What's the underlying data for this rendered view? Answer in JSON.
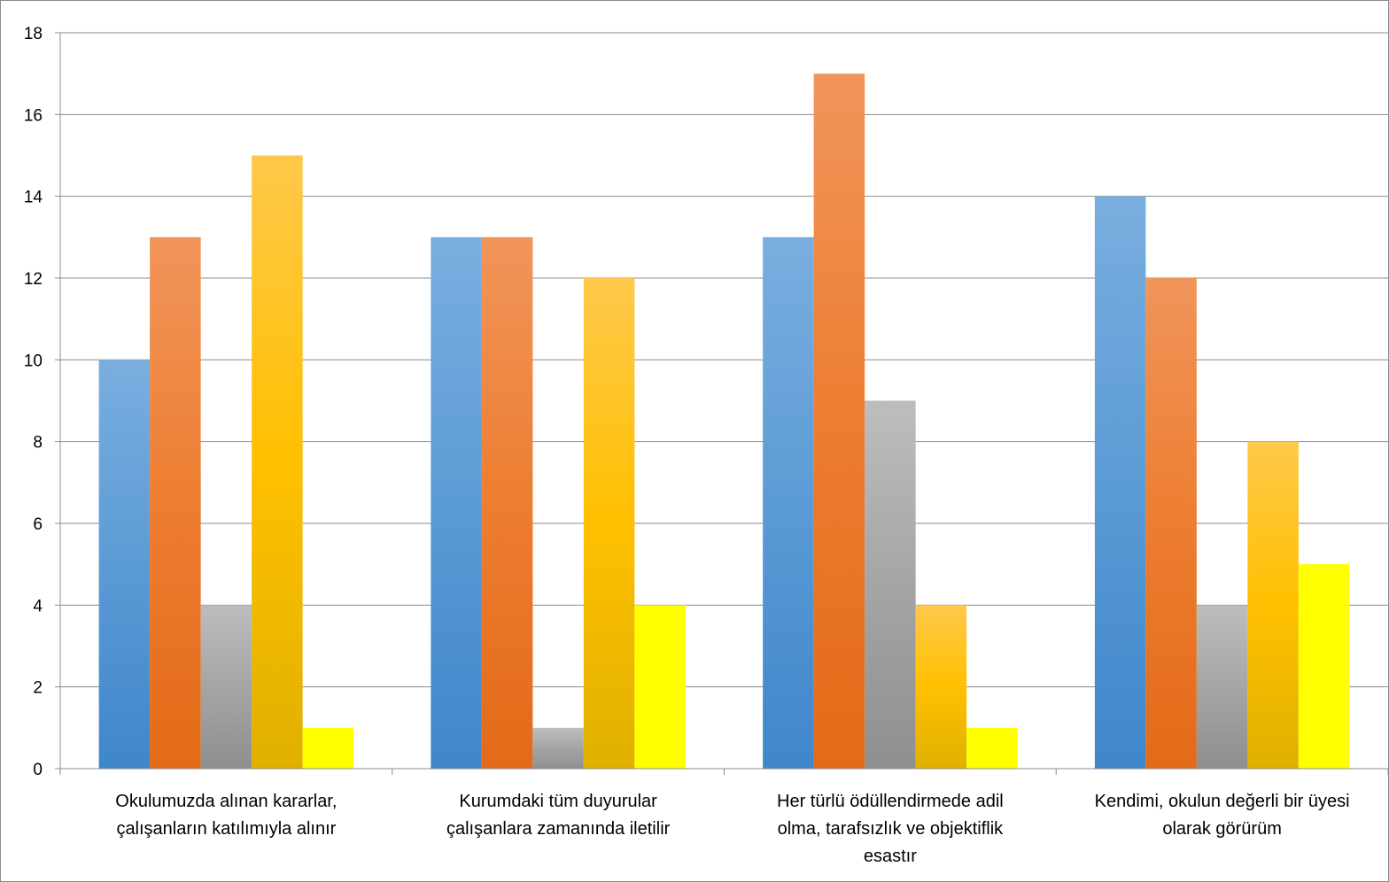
{
  "chart_data": {
    "type": "bar",
    "title": "",
    "xlabel": "",
    "ylabel": "",
    "ylim": [
      0,
      18
    ],
    "ytick_step": 2,
    "yticks": [
      "0",
      "2",
      "4",
      "6",
      "8",
      "10",
      "12",
      "14",
      "16",
      "18"
    ],
    "grid": true,
    "legend": "none",
    "categories": [
      [
        "Okulumuzda alınan kararlar,",
        "çalışanların katılımıyla alınır"
      ],
      [
        "Kurumdaki tüm duyurular",
        "çalışanlara zamanında iletilir"
      ],
      [
        "Her türlü ödüllendirmede adil",
        "olma, tarafsızlık ve objektiflik",
        "esastır"
      ],
      [
        "Kendimi, okulun değerli bir üyesi",
        "olarak görürüm"
      ]
    ],
    "series": [
      {
        "values": [
          10,
          13,
          13,
          14
        ],
        "color": "#5b9bd5",
        "color_light": "#7aaee0",
        "color_dark": "#3f86cb"
      },
      {
        "values": [
          13,
          13,
          17,
          12
        ],
        "color": "#ed7d31",
        "color_light": "#f1955a",
        "color_dark": "#e36a18"
      },
      {
        "values": [
          4,
          1,
          9,
          4
        ],
        "color": "#a5a5a5",
        "color_light": "#bdbdbd",
        "color_dark": "#8f8f8f"
      },
      {
        "values": [
          15,
          12,
          4,
          8
        ],
        "color": "#ffc000",
        "color_light": "#ffc84a",
        "color_dark": "#e0b000"
      },
      {
        "values": [
          1,
          4,
          1,
          5
        ],
        "color": "#ffff00",
        "color_light": "#ffff00",
        "color_dark": "#ffff00"
      }
    ]
  }
}
